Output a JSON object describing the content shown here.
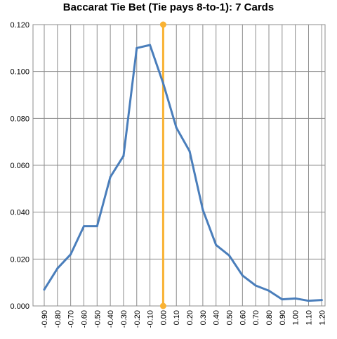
{
  "chart_data": {
    "type": "line",
    "title": "Baccarat Tie Bet (Tie pays 8-to-1): 7 Cards",
    "xlabel": "",
    "ylabel": "",
    "categories": [
      "-0.90",
      "-0.80",
      "-0.70",
      "-0.60",
      "-0.50",
      "-0.40",
      "-0.30",
      "-0.20",
      "-0.10",
      "0.00",
      "0.10",
      "0.20",
      "0.30",
      "0.40",
      "0.50",
      "0.60",
      "0.70",
      "0.80",
      "0.90",
      "1.00",
      "1.10",
      "1.20"
    ],
    "yticks": [
      "0.000",
      "0.020",
      "0.040",
      "0.060",
      "0.080",
      "0.100",
      "0.120"
    ],
    "ylim": [
      0,
      0.12
    ],
    "grid": true,
    "series": [
      {
        "color": "#4a7ebb",
        "values": [
          0.007,
          0.016,
          0.022,
          0.034,
          0.034,
          0.055,
          0.064,
          0.11,
          0.1113,
          0.095,
          0.076,
          0.066,
          0.041,
          0.026,
          0.0215,
          0.013,
          0.0087,
          0.0065,
          0.0028,
          0.0032,
          0.0022,
          0.0025
        ]
      }
    ],
    "marker_line": {
      "x": "0.00",
      "color": "#f9b233"
    }
  }
}
